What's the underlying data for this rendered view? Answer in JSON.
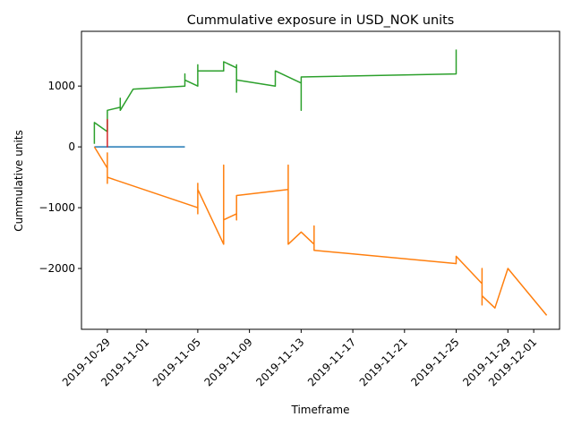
{
  "chart_data": {
    "type": "line",
    "title": "Cummulative exposure in USD_NOK units",
    "xlabel": "Timeframe",
    "ylabel": "Cummulative units",
    "x_type": "date",
    "xlim": [
      "2019-10-27",
      "2019-12-03"
    ],
    "ylim": [
      -3000,
      1900
    ],
    "x_ticks": [
      "2019-10-29",
      "2019-11-01",
      "2019-11-05",
      "2019-11-09",
      "2019-11-13",
      "2019-11-17",
      "2019-11-21",
      "2019-11-25",
      "2019-11-29",
      "2019-12-01"
    ],
    "y_ticks": [
      -2000,
      -1000,
      0,
      1000
    ],
    "grid": false,
    "legend": "none",
    "series": [
      {
        "color": "#1f77b4",
        "points": [
          [
            "2019-10-28",
            0
          ],
          [
            "2019-11-04",
            0
          ]
        ]
      },
      {
        "color": "#ff7f0e",
        "points": [
          [
            "2019-10-28",
            0
          ],
          [
            "2019-10-29",
            -350
          ],
          [
            "2019-10-29",
            -100
          ],
          [
            "2019-10-29",
            -600
          ],
          [
            "2019-10-29",
            -500
          ],
          [
            "2019-11-05",
            -1000
          ],
          [
            "2019-11-05",
            -1100
          ],
          [
            "2019-11-05",
            -600
          ],
          [
            "2019-11-05",
            -700
          ],
          [
            "2019-11-07",
            -1600
          ],
          [
            "2019-11-07",
            -1200
          ],
          [
            "2019-11-07",
            -1500
          ],
          [
            "2019-11-07",
            -300
          ],
          [
            "2019-11-07",
            -1200
          ],
          [
            "2019-11-08",
            -1100
          ],
          [
            "2019-11-08",
            -1200
          ],
          [
            "2019-11-08",
            -900
          ],
          [
            "2019-11-08",
            -800
          ],
          [
            "2019-11-12",
            -700
          ],
          [
            "2019-11-12",
            -300
          ],
          [
            "2019-11-12",
            -1600
          ],
          [
            "2019-11-13",
            -1400
          ],
          [
            "2019-11-14",
            -1600
          ],
          [
            "2019-11-14",
            -1300
          ],
          [
            "2019-11-14",
            -1700
          ],
          [
            "2019-11-25",
            -1920
          ],
          [
            "2019-11-25",
            -1800
          ],
          [
            "2019-11-27",
            -2250
          ],
          [
            "2019-11-27",
            -2000
          ],
          [
            "2019-11-27",
            -2600
          ],
          [
            "2019-11-27",
            -2450
          ],
          [
            "2019-11-28",
            -2650
          ],
          [
            "2019-11-29",
            -2000
          ],
          [
            "2019-12-02",
            -2770
          ]
        ]
      },
      {
        "color": "#2ca02c",
        "points": [
          [
            "2019-10-28",
            50
          ],
          [
            "2019-10-28",
            400
          ],
          [
            "2019-10-29",
            250
          ],
          [
            "2019-10-29",
            600
          ],
          [
            "2019-10-30",
            650
          ],
          [
            "2019-10-30",
            800
          ],
          [
            "2019-10-30",
            600
          ],
          [
            "2019-10-31",
            950
          ],
          [
            "2019-11-04",
            1000
          ],
          [
            "2019-11-04",
            1200
          ],
          [
            "2019-11-04",
            1100
          ],
          [
            "2019-11-05",
            1000
          ],
          [
            "2019-11-05",
            1350
          ],
          [
            "2019-11-05",
            1250
          ],
          [
            "2019-11-07",
            1250
          ],
          [
            "2019-11-07",
            1400
          ],
          [
            "2019-11-08",
            1300
          ],
          [
            "2019-11-08",
            900
          ],
          [
            "2019-11-08",
            1350
          ],
          [
            "2019-11-08",
            1100
          ],
          [
            "2019-11-11",
            1000
          ],
          [
            "2019-11-11",
            1250
          ],
          [
            "2019-11-13",
            1050
          ],
          [
            "2019-11-13",
            600
          ],
          [
            "2019-11-13",
            1150
          ],
          [
            "2019-11-25",
            1200
          ],
          [
            "2019-11-25",
            1300
          ],
          [
            "2019-11-25",
            1600
          ]
        ]
      },
      {
        "color": "#d62728",
        "points": [
          [
            "2019-10-29",
            50
          ],
          [
            "2019-10-29",
            450
          ],
          [
            "2019-10-29",
            0
          ],
          [
            "2019-10-29",
            400
          ],
          [
            "2019-10-29",
            100
          ]
        ]
      }
    ]
  }
}
